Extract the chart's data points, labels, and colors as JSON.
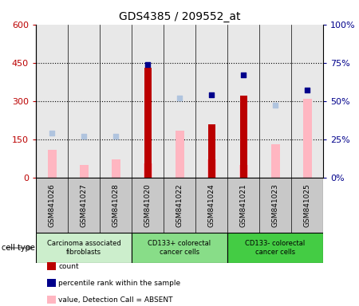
{
  "title": "GDS4385 / 209552_at",
  "samples": [
    "GSM841026",
    "GSM841027",
    "GSM841028",
    "GSM841020",
    "GSM841022",
    "GSM841024",
    "GSM841021",
    "GSM841023",
    "GSM841025"
  ],
  "count": [
    null,
    null,
    null,
    430,
    null,
    210,
    320,
    null,
    null
  ],
  "value_absent": [
    110,
    50,
    70,
    55,
    185,
    70,
    50,
    130,
    310
  ],
  "percentile_rank_present": [
    null,
    null,
    null,
    74,
    null,
    54,
    67,
    null,
    57
  ],
  "percentile_rank_absent": [
    29,
    27,
    27,
    null,
    52,
    null,
    null,
    47,
    null
  ],
  "count_color": "#bb0000",
  "percentile_present_color": "#00008B",
  "value_absent_color": "#FFB6C1",
  "percentile_absent_color": "#B0C4DE",
  "cell_groups": [
    {
      "label": "Carcinoma associated\nfibroblasts",
      "start": 0,
      "end": 3,
      "color": "#cceecc"
    },
    {
      "label": "CD133+ colorectal\ncancer cells",
      "start": 3,
      "end": 6,
      "color": "#88dd88"
    },
    {
      "label": "CD133- colorectal\ncancer cells",
      "start": 6,
      "end": 9,
      "color": "#44cc44"
    }
  ],
  "ylim_left": [
    0,
    600
  ],
  "ylim_right": [
    0,
    100
  ],
  "yticks_left": [
    0,
    150,
    300,
    450,
    600
  ],
  "ytick_labels_left": [
    "0",
    "150",
    "300",
    "450",
    "600"
  ],
  "yticks_right": [
    0,
    25,
    50,
    75,
    100
  ],
  "ytick_labels_right": [
    "0%",
    "25%",
    "50%",
    "75%",
    "100%"
  ],
  "bar_width": 0.5,
  "plot_bg": "#e8e8e8",
  "label_bg": "#c8c8c8"
}
